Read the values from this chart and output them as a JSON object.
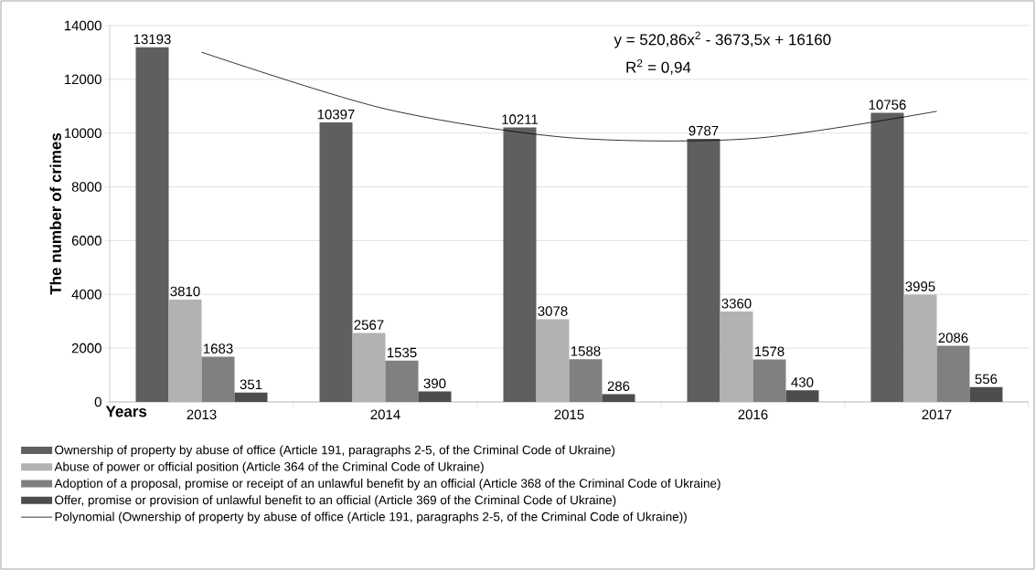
{
  "chart_data": {
    "type": "bar",
    "xlabel": "Years",
    "ylabel": "The number of crimes",
    "categories": [
      "2013",
      "2014",
      "2015",
      "2016",
      "2017"
    ],
    "series": [
      {
        "name": "Ownership of property by abuse of office (Article 191, paragraphs 2-5, of the Criminal Code of Ukraine)",
        "color": "#5f5f5f",
        "values": [
          13193,
          10397,
          10211,
          9787,
          10756
        ],
        "value_labels": [
          "13193",
          "10397",
          "10211",
          "9787",
          "10756"
        ]
      },
      {
        "name": "Abuse of power or official position (Article 364 of the Criminal Code of Ukraine)",
        "color": "#b2b2b2",
        "values": [
          3810,
          2567,
          3078,
          3360,
          3995
        ],
        "value_labels": [
          "3810",
          "2567",
          "3078",
          "3360",
          "3995"
        ]
      },
      {
        "name": "Adoption of a proposal, promise or receipt of an unlawful benefit by an official (Article 368 of the Criminal Code of Ukraine)",
        "color": "#808080",
        "values": [
          1683,
          1535,
          1588,
          1578,
          2086
        ],
        "value_labels": [
          "1683",
          "1535",
          "1588",
          "1578",
          "2086"
        ]
      },
      {
        "name": "Offer, promise or provision of unlawful benefit to an official (Article 369 of the Criminal Code of Ukraine)",
        "color": "#4d4d4d",
        "values": [
          351,
          390,
          286,
          430,
          556
        ],
        "value_labels": [
          "351",
          "390",
          "286",
          "430",
          "556"
        ]
      },
      {
        "name": "Polynomial (Ownership of property by abuse of office (Article 191, paragraphs 2-5, of the Criminal Code of Ukraine))",
        "type": "line",
        "color": "#000000",
        "values": [
          13010,
          10900,
          9830,
          9800,
          10810
        ]
      }
    ],
    "annotations": [
      "y = 520,86x$^{2}$ - 3673,5x + 16160",
      "R$^{2}$ = 0,94"
    ],
    "ylim": [
      0,
      14000
    ],
    "yticks": [
      0,
      2000,
      4000,
      6000,
      8000,
      10000,
      12000,
      14000
    ],
    "grid": "y",
    "legend": "bottom"
  }
}
